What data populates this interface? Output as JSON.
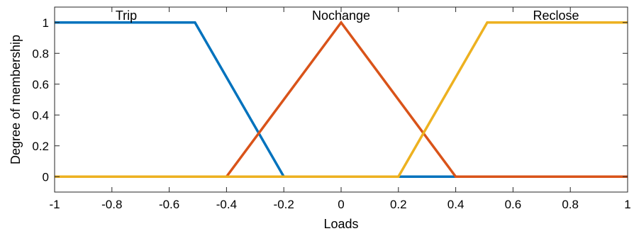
{
  "chart_data": {
    "type": "line",
    "title": "",
    "xlabel": "Loads",
    "ylabel": "Degree of membership",
    "xlim": [
      -1,
      1
    ],
    "ylim": [
      -0.1,
      1.1
    ],
    "grid": false,
    "legend": "none",
    "xticks": [
      -1,
      -0.8,
      -0.6,
      -0.4,
      -0.2,
      0,
      0.2,
      0.4,
      0.6,
      0.8,
      1
    ],
    "xtick_labels": [
      "-1",
      "-0.8",
      "-0.6",
      "-0.4",
      "-0.2",
      "0",
      "0.2",
      "0.4",
      "0.6",
      "0.8",
      "1"
    ],
    "yticks": [
      0,
      0.2,
      0.4,
      0.6,
      0.8,
      1
    ],
    "ytick_labels": [
      "0",
      "0.2",
      "0.4",
      "0.6",
      "0.8",
      "1"
    ],
    "series": [
      {
        "name": "Trip",
        "color": "#0072BD",
        "x": [
          -1,
          -0.51,
          -0.2,
          1
        ],
        "y": [
          1,
          1,
          0,
          0
        ],
        "label_x": -0.75
      },
      {
        "name": "Nochange",
        "color": "#D95319",
        "x": [
          -1,
          -0.4,
          0,
          0.4,
          1
        ],
        "y": [
          0,
          0,
          1,
          0,
          0
        ],
        "label_x": 0
      },
      {
        "name": "Reclose",
        "color": "#EDB120",
        "x": [
          -1,
          0.2,
          0.51,
          1
        ],
        "y": [
          0,
          0,
          1,
          1
        ],
        "label_x": 0.75
      }
    ]
  }
}
